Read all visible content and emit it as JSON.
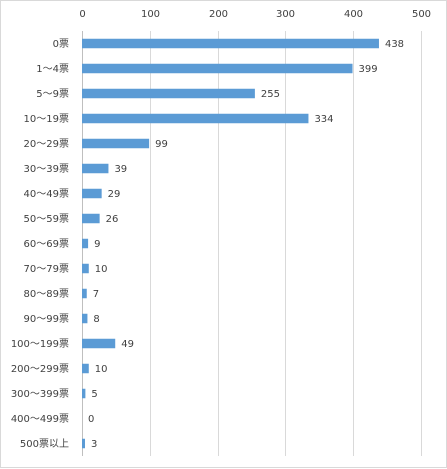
{
  "chart_data": {
    "type": "bar",
    "orientation": "horizontal",
    "x_axis_position": "top",
    "categories": [
      "0票",
      "1～4票",
      "5～9票",
      "10～19票",
      "20～29票",
      "30～39票",
      "40～49票",
      "50～59票",
      "60～69票",
      "70～79票",
      "80～89票",
      "90～99票",
      "100～199票",
      "200～299票",
      "300～399票",
      "400～499票",
      "500票以上"
    ],
    "values": [
      438,
      399,
      255,
      334,
      99,
      39,
      29,
      26,
      9,
      10,
      7,
      8,
      49,
      10,
      5,
      0,
      3
    ],
    "xticks": [
      "0",
      "100",
      "200",
      "300",
      "400",
      "500"
    ],
    "xlim": [
      0,
      500
    ],
    "grid": true,
    "legend": "none",
    "title": "",
    "xlabel": "",
    "ylabel": "",
    "colors": {
      "bar": "#5b9bd5",
      "grid": "#d9d9d9",
      "text": "#404040"
    }
  }
}
